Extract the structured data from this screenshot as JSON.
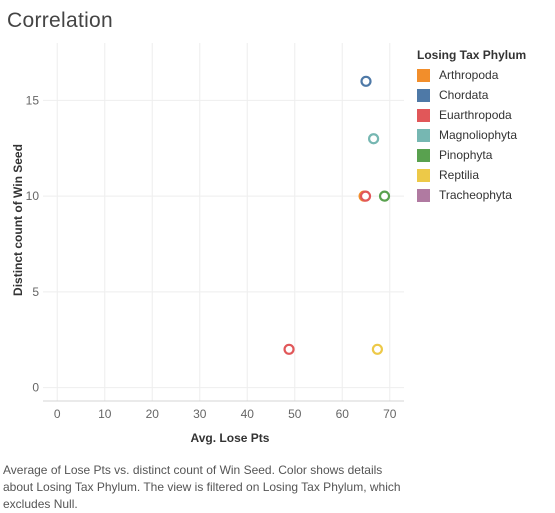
{
  "chart_data": {
    "type": "scatter",
    "title": "Correlation",
    "xlabel": "Avg. Lose Pts",
    "ylabel": "Distinct count of Win Seed",
    "xlim": [
      -3,
      73
    ],
    "ylim": [
      -0.7,
      18
    ],
    "xticks": [
      0,
      10,
      20,
      30,
      40,
      50,
      60,
      70
    ],
    "yticks": [
      0,
      5,
      10,
      15
    ],
    "legend_title": "Losing Tax Phylum",
    "series": [
      {
        "name": "Arthropoda",
        "color": "#f28e2b",
        "points": [
          {
            "x": 64.6,
            "y": 10
          }
        ]
      },
      {
        "name": "Chordata",
        "color": "#4e79a7",
        "points": [
          {
            "x": 65.0,
            "y": 16
          }
        ]
      },
      {
        "name": "Euarthropoda",
        "color": "#e15759",
        "points": [
          {
            "x": 48.8,
            "y": 2
          },
          {
            "x": 64.9,
            "y": 10
          }
        ]
      },
      {
        "name": "Magnoliophyta",
        "color": "#76b7b2",
        "points": [
          {
            "x": 66.6,
            "y": 13
          }
        ]
      },
      {
        "name": "Pinophyta",
        "color": "#59a14f",
        "points": [
          {
            "x": 68.9,
            "y": 10
          }
        ]
      },
      {
        "name": "Reptilia",
        "color": "#edc948",
        "points": [
          {
            "x": 67.4,
            "y": 2
          }
        ]
      },
      {
        "name": "Tracheophyta",
        "color": "#b07aa1",
        "points": []
      }
    ]
  },
  "caption": "Average of Lose Pts vs. distinct count of Win Seed.  Color shows details about Losing Tax Phylum. The view is filtered on Losing Tax Phylum, which excludes Null."
}
